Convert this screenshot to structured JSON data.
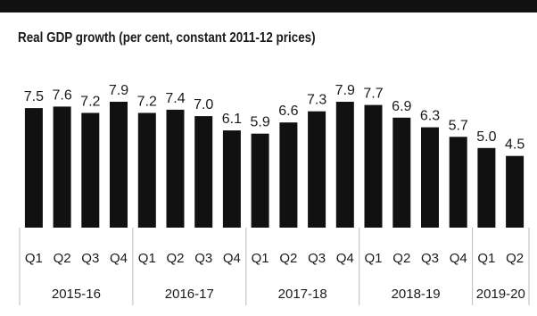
{
  "chart_data": {
    "type": "bar",
    "title": "Real GDP growth (per cent, constant 2011-12 prices)",
    "categories": [
      "Q1",
      "Q2",
      "Q3",
      "Q4",
      "Q1",
      "Q2",
      "Q3",
      "Q4",
      "Q1",
      "Q2",
      "Q3",
      "Q4",
      "Q1",
      "Q2",
      "Q3",
      "Q4",
      "Q1",
      "Q2"
    ],
    "groups": [
      {
        "label": "2015-16",
        "count": 4
      },
      {
        "label": "2016-17",
        "count": 4
      },
      {
        "label": "2017-18",
        "count": 4
      },
      {
        "label": "2018-19",
        "count": 4
      },
      {
        "label": "2019-20",
        "count": 2
      }
    ],
    "values": [
      7.5,
      7.6,
      7.2,
      7.9,
      7.2,
      7.4,
      7.0,
      6.1,
      5.9,
      6.6,
      7.3,
      7.9,
      7.7,
      6.9,
      6.3,
      5.7,
      5.0,
      4.5
    ],
    "value_labels": [
      "7.5",
      "7.6",
      "7.2",
      "7.9",
      "7.2",
      "7.4",
      "7.0",
      "6.1",
      "5.9",
      "6.6",
      "7.3",
      "7.9",
      "7.7",
      "6.9",
      "6.3",
      "5.7",
      "5.0",
      "4.5"
    ],
    "xlabel": "",
    "ylabel": "",
    "ylim": [
      0,
      7.9
    ],
    "grid": false,
    "bar_color": "#111111",
    "divider_color": "#bbbbbb"
  }
}
